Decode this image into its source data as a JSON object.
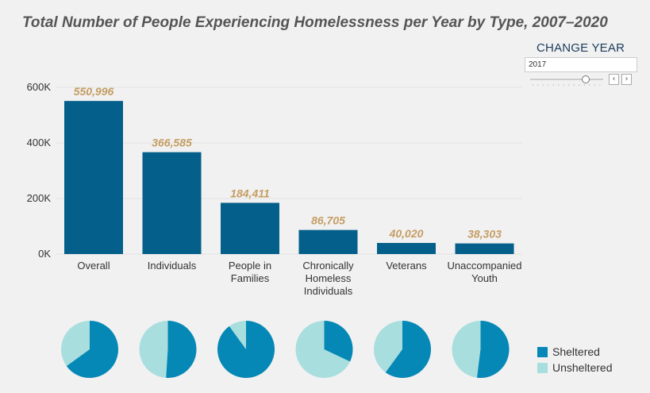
{
  "title": "Total Number of People Experiencing Homelessness per Year by Type, 2007–2020",
  "colors": {
    "bar": "#04608a",
    "value_label": "#c59d63",
    "sheltered": "#0688b6",
    "unsheltered": "#a9dedf",
    "axis_text": "#333333",
    "grid": "#e2e2e2"
  },
  "controls": {
    "change_year_label": "CHANGE YEAR",
    "year_value": "2017",
    "prev_icon": "‹",
    "next_icon": "›"
  },
  "legend": {
    "sheltered": "Sheltered",
    "unsheltered": "Unsheltered"
  },
  "chart_data": {
    "type": "bar",
    "title": "Total Number of People Experiencing Homelessness per Year by Type, 2007–2020",
    "categories": [
      [
        "Overall"
      ],
      [
        "Individuals"
      ],
      [
        "People in",
        "Families"
      ],
      [
        "Chronically",
        "Homeless",
        "Individuals"
      ],
      [
        "Veterans"
      ],
      [
        "Unaccompanied",
        "Youth"
      ]
    ],
    "values": [
      550996,
      366585,
      184411,
      86705,
      40020,
      38303
    ],
    "value_labels": [
      "550,996",
      "366,585",
      "184,411",
      "86,705",
      "40,020",
      "38,303"
    ],
    "ylim": [
      0,
      600000
    ],
    "yticks": [
      0,
      200000,
      400000,
      600000
    ],
    "ytick_labels": [
      "0K",
      "200K",
      "400K",
      "600K"
    ],
    "grid": true,
    "sheltered_fraction": [
      0.65,
      0.51,
      0.9,
      0.32,
      0.6,
      0.52
    ]
  }
}
